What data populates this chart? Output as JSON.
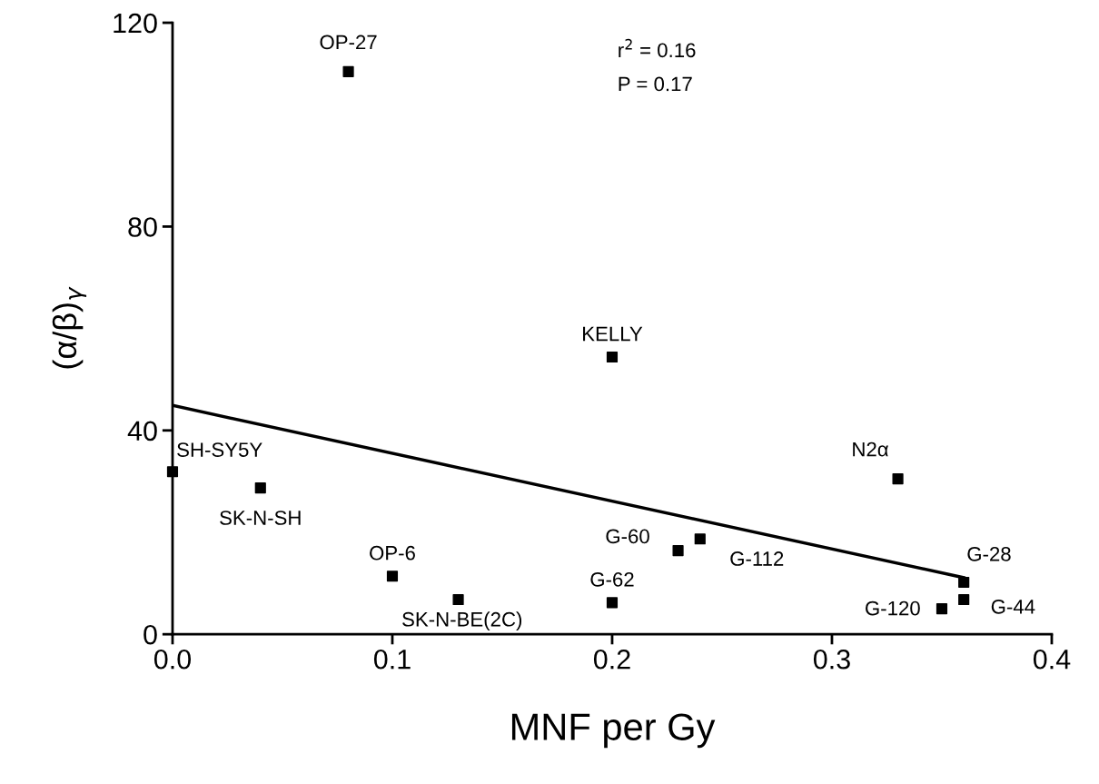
{
  "chart_data": {
    "type": "scatter",
    "xlabel": "MNF per Gy",
    "ylabel": "(α/β)$_{γ}$",
    "xlim": [
      0,
      0.4
    ],
    "ylim": [
      0,
      120
    ],
    "xticks": [
      {
        "value": 0,
        "label": "0.0"
      },
      0.1,
      0.2,
      0.3,
      0.4
    ],
    "yticks": [
      0,
      40,
      80,
      120
    ],
    "grid": false,
    "series": [
      {
        "marker": "square",
        "color": "#000000",
        "x": [
          0.08,
          0.2,
          0.33,
          0,
          0.04,
          0.1,
          0.13,
          0.2,
          0.23,
          0.24,
          0.36,
          0.36,
          0.35
        ],
        "values": [
          110.4,
          54.4,
          30.5,
          31.9,
          28.7,
          11.4,
          6.8,
          6.2,
          16.4,
          18.7,
          10.2,
          6.8,
          5.0
        ]
      },
      {
        "type": "line",
        "marker": "none",
        "color": "#000000",
        "x": [
          0,
          0.36
        ],
        "values": [
          44.9,
          11.1
        ]
      }
    ],
    "annotations": [
      {
        "text": "OP-27",
        "x": 0.08,
        "y": 110.4
      },
      {
        "text": "KELLY",
        "x": 0.2,
        "y": 54.4
      },
      {
        "text": "N2α",
        "x": 0.33,
        "y": 30.5
      },
      {
        "text": "SH-SY5Y",
        "x": 0,
        "y": 31.9
      },
      {
        "text": "SK-N-SH",
        "x": 0.04,
        "y": 28.7
      },
      {
        "text": "OP-6",
        "x": 0.1,
        "y": 11.4
      },
      {
        "text": "SK-N-BE(2C)",
        "x": 0.13,
        "y": 6.8
      },
      {
        "text": "G-62",
        "x": 0.2,
        "y": 6.2
      },
      {
        "text": "G-60",
        "x": 0.23,
        "y": 16.4
      },
      {
        "text": "G-112",
        "x": 0.24,
        "y": 18.7
      },
      {
        "text": "G-28",
        "x": 0.36,
        "y": 10.2
      },
      {
        "text": "G-44",
        "x": 0.36,
        "y": 6.8
      },
      {
        "text": "G-120",
        "x": 0.35,
        "y": 5.0
      },
      "r$^{2}$ = 0.16",
      "P = 0.17"
    ]
  }
}
